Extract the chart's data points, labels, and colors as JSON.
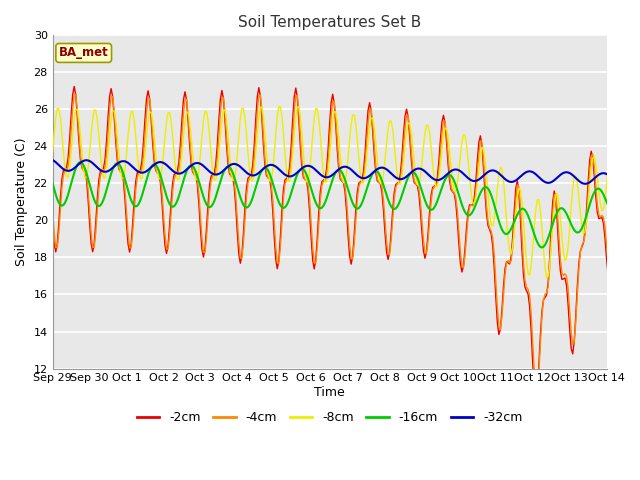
{
  "title": "Soil Temperatures Set B",
  "xlabel": "Time",
  "ylabel": "Soil Temperature (C)",
  "ylim": [
    12,
    30
  ],
  "yticks": [
    12,
    14,
    16,
    18,
    20,
    22,
    24,
    26,
    28,
    30
  ],
  "annotation_text": "BA_met",
  "series_colors": {
    "-2cm": "#ee0000",
    "-4cm": "#ff8800",
    "-8cm": "#eeee00",
    "-16cm": "#00cc00",
    "-32cm": "#0000cc"
  },
  "x_tick_labels": [
    "Sep 29",
    "Sep 30",
    "Oct 1",
    "Oct 2",
    "Oct 3",
    "Oct 4",
    "Oct 5",
    "Oct 6",
    "Oct 7",
    "Oct 8",
    "Oct 9",
    "Oct 10",
    "Oct 11",
    "Oct 12",
    "Oct 13",
    "Oct 14"
  ],
  "fig_facecolor": "#ffffff",
  "ax_facecolor": "#e8e8e8",
  "grid_color": "#ffffff"
}
